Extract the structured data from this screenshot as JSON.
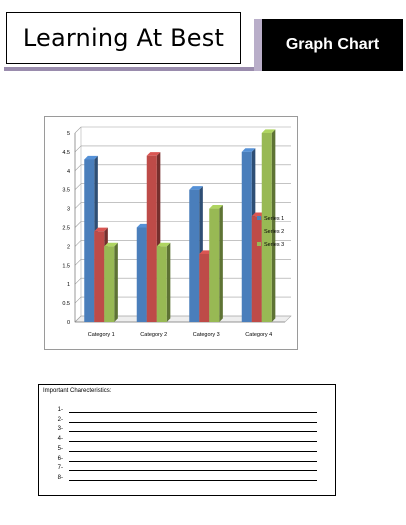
{
  "header": {
    "title": "Learning At Best",
    "tag": "Graph Chart"
  },
  "chart_data": {
    "type": "bar",
    "categories": [
      "Category 1",
      "Category 2",
      "Category 3",
      "Category 4"
    ],
    "series": [
      {
        "name": "Series 1",
        "color": "#4a7ebb",
        "values": [
          4.3,
          2.5,
          3.5,
          4.5
        ]
      },
      {
        "name": "Series 2",
        "color": "#be4b48",
        "values": [
          2.4,
          4.4,
          1.8,
          2.8
        ]
      },
      {
        "name": "Series 3",
        "color": "#98b954",
        "values": [
          2.0,
          2.0,
          3.0,
          5.0
        ]
      }
    ],
    "ylim": [
      0,
      5
    ],
    "yticks": [
      "0",
      "0.5",
      "1",
      "1.5",
      "2",
      "2.5",
      "3",
      "3.5",
      "4",
      "4.5",
      "5"
    ],
    "grid": true,
    "legend": "right",
    "style": "3d-clustered-column"
  },
  "notes": {
    "title": "Important Charecteristics:",
    "items": [
      "1-",
      "2-",
      "3-",
      "4-",
      "5-",
      "6-",
      "7-",
      "8-"
    ]
  }
}
